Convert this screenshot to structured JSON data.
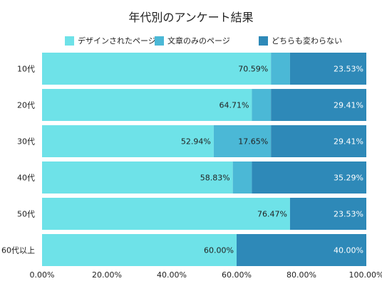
{
  "chart_data": {
    "type": "bar",
    "orientation": "horizontal",
    "stacked": true,
    "percent": true,
    "title": "年代別のアンケート結果",
    "categories": [
      "10代",
      "20代",
      "30代",
      "40代",
      "50代",
      "60代以上"
    ],
    "series": [
      {
        "name": "デザインされたページ",
        "color": "#6ee2e8",
        "values": [
          70.59,
          64.71,
          52.94,
          58.83,
          76.47,
          60.0
        ],
        "labels": [
          "70.59%",
          "64.71%",
          "52.94%",
          "58.83%",
          "76.47%",
          "60.00%"
        ]
      },
      {
        "name": "文章のみのページ",
        "color": "#4bb8d6",
        "values": [
          5.88,
          5.88,
          17.65,
          5.88,
          0,
          0
        ],
        "labels": [
          "",
          "",
          "17.65%",
          "",
          "",
          ""
        ]
      },
      {
        "name": "どちらも変わらない",
        "color": "#2e89b8",
        "values": [
          23.53,
          29.41,
          29.41,
          35.29,
          23.53,
          40.0
        ],
        "labels": [
          "23.53%",
          "29.41%",
          "29.41%",
          "35.29%",
          "23.53%",
          "40.00%"
        ]
      }
    ],
    "xlim": [
      0,
      100
    ],
    "x_ticks": [
      "0.00%",
      "20.00%",
      "40.00%",
      "60.00%",
      "80.00%",
      "100.00%"
    ],
    "legend_position": "top",
    "grid": false
  }
}
